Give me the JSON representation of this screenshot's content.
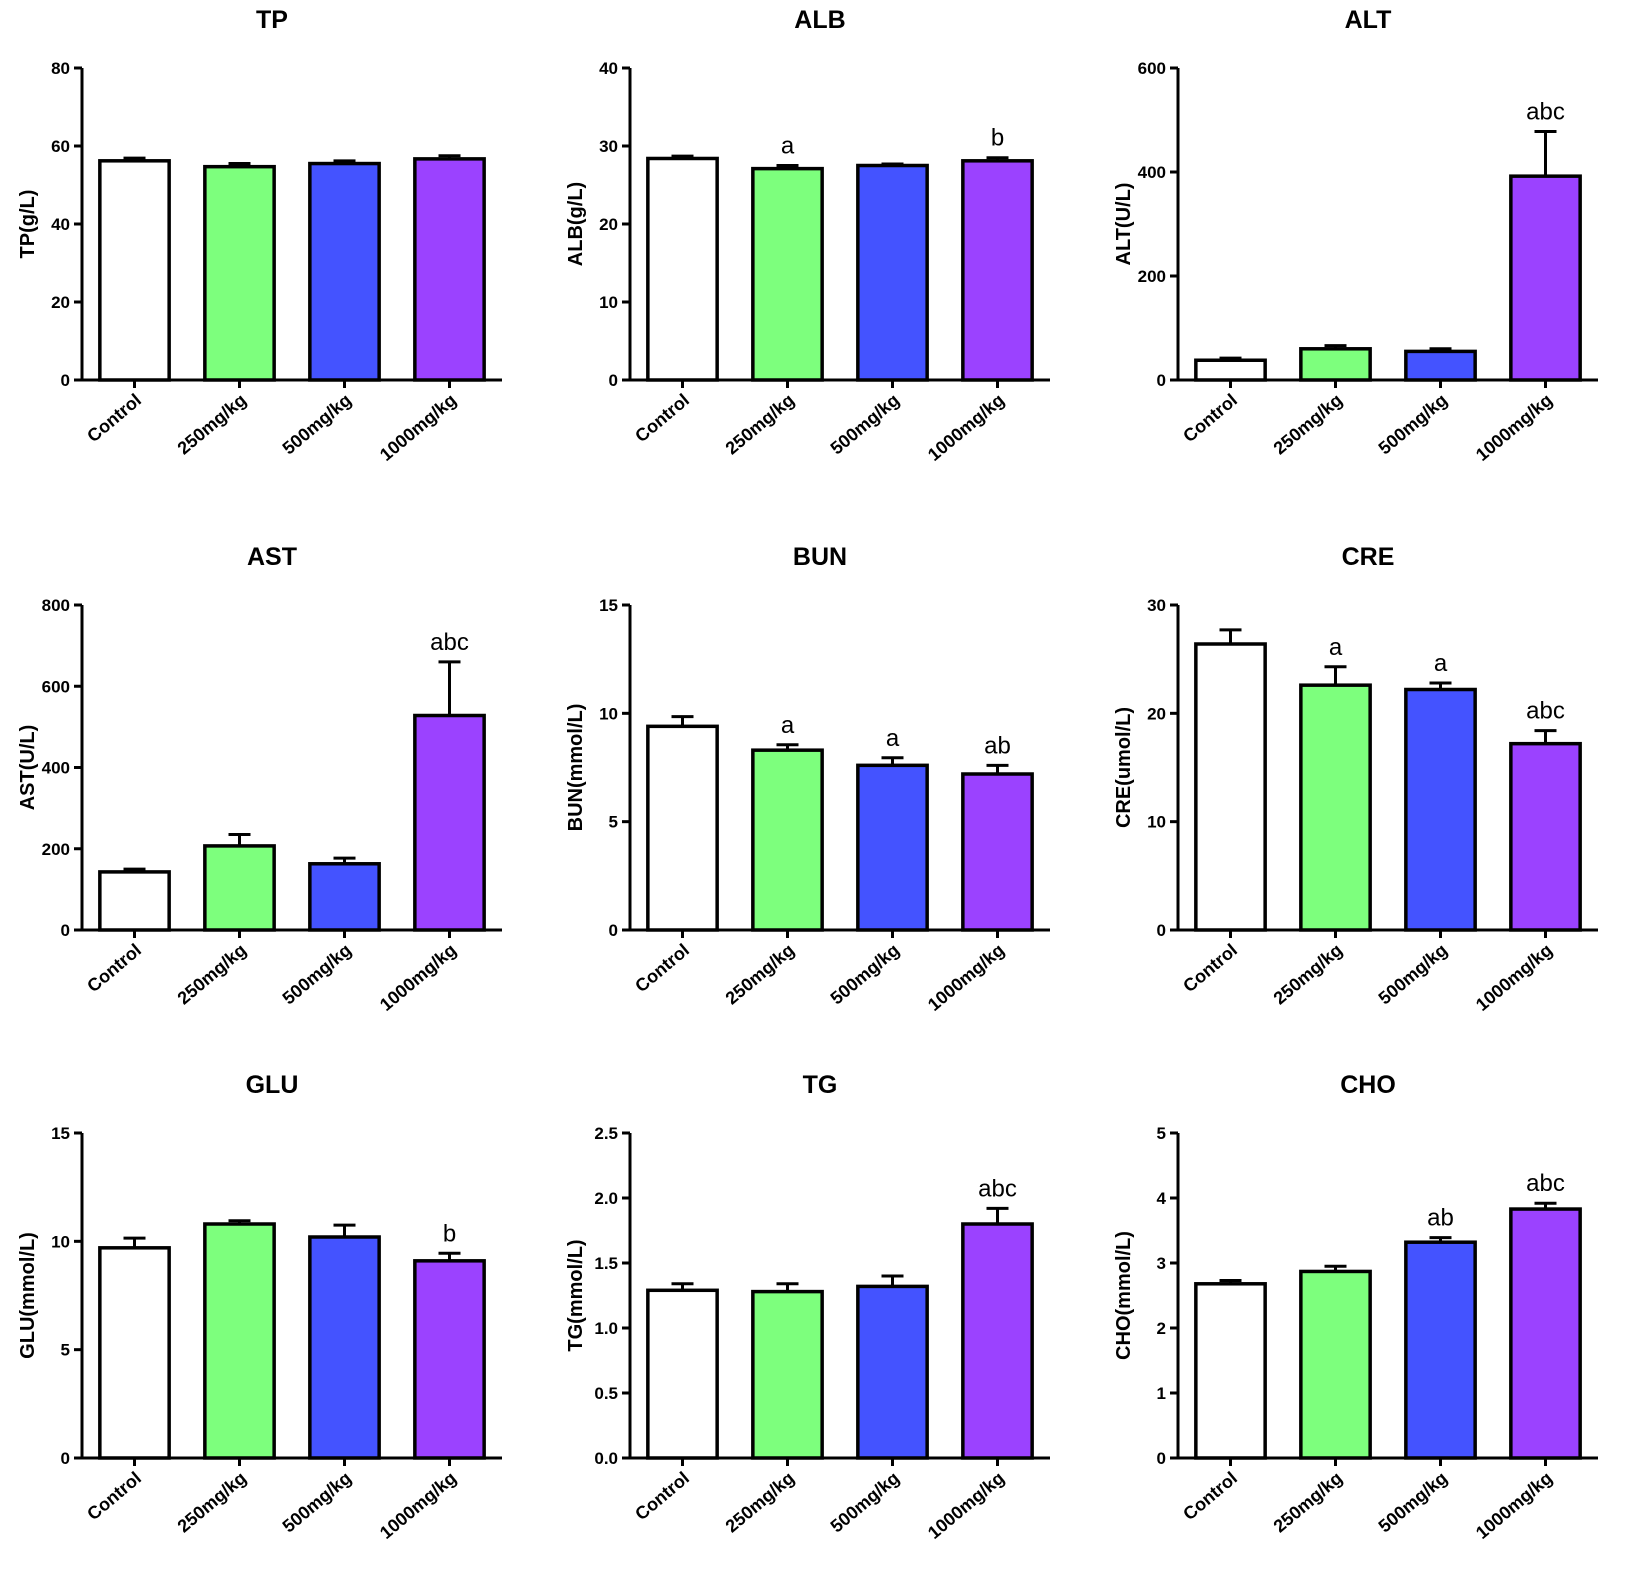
{
  "categories": [
    "Control",
    "250mg/kg",
    "500mg/kg",
    "1000mg/kg"
  ],
  "colors": [
    "#ffffff",
    "#7dff7d",
    "#4453ff",
    "#9b42ff"
  ],
  "chart_data": [
    {
      "type": "bar",
      "title": "TP",
      "ylabel": "TP(g/L)",
      "ylim": [
        0,
        80
      ],
      "yticks": [
        "0",
        "20",
        "40",
        "60",
        "80"
      ],
      "values": [
        56.2,
        54.7,
        55.5,
        56.7
      ],
      "errors": [
        0.7,
        0.8,
        0.7,
        0.8
      ],
      "annotations": [
        "",
        "",
        "",
        ""
      ]
    },
    {
      "type": "bar",
      "title": "ALB",
      "ylabel": "ALB(g/L)",
      "ylim": [
        0,
        40
      ],
      "yticks": [
        "0",
        "10",
        "20",
        "30",
        "40"
      ],
      "values": [
        28.4,
        27.1,
        27.5,
        28.1
      ],
      "errors": [
        0.3,
        0.4,
        0.2,
        0.4
      ],
      "annotations": [
        "",
        "a",
        "",
        "b"
      ]
    },
    {
      "type": "bar",
      "title": "ALT",
      "ylabel": "ALT(U/L)",
      "ylim": [
        0,
        600
      ],
      "yticks": [
        "0",
        "200",
        "400",
        "600"
      ],
      "values": [
        38,
        60,
        55,
        392
      ],
      "errors": [
        4,
        6,
        5,
        86
      ],
      "annotations": [
        "",
        "",
        "",
        "abc"
      ]
    },
    {
      "type": "bar",
      "title": "AST",
      "ylabel": "AST(U/L)",
      "ylim": [
        0,
        800
      ],
      "yticks": [
        "0",
        "200",
        "400",
        "600",
        "800"
      ],
      "values": [
        143,
        207,
        163,
        528
      ],
      "errors": [
        7,
        28,
        14,
        132
      ],
      "annotations": [
        "",
        "",
        "",
        "abc"
      ]
    },
    {
      "type": "bar",
      "title": "BUN",
      "ylabel": "BUN(mmol/L)",
      "ylim": [
        0,
        15
      ],
      "yticks": [
        "0",
        "5",
        "10",
        "15"
      ],
      "values": [
        9.4,
        8.3,
        7.6,
        7.2
      ],
      "errors": [
        0.45,
        0.25,
        0.35,
        0.4
      ],
      "annotations": [
        "",
        "a",
        "a",
        "ab"
      ]
    },
    {
      "type": "bar",
      "title": "CRE",
      "ylabel": "CRE(umol/L)",
      "ylim": [
        0,
        30
      ],
      "yticks": [
        "0",
        "10",
        "20",
        "30"
      ],
      "values": [
        26.4,
        22.6,
        22.2,
        17.2
      ],
      "errors": [
        1.3,
        1.7,
        0.6,
        1.2
      ],
      "annotations": [
        "",
        "a",
        "a",
        "abc"
      ]
    },
    {
      "type": "bar",
      "title": "GLU",
      "ylabel": "GLU(mmol/L)",
      "ylim": [
        0,
        15
      ],
      "yticks": [
        "0",
        "5",
        "10",
        "15"
      ],
      "values": [
        9.7,
        10.8,
        10.2,
        9.1
      ],
      "errors": [
        0.45,
        0.15,
        0.55,
        0.35
      ],
      "annotations": [
        "",
        "",
        "",
        "b"
      ]
    },
    {
      "type": "bar",
      "title": "TG",
      "ylabel": "TG(mmol/L)",
      "ylim": [
        0,
        2.5
      ],
      "yticks": [
        "0.0",
        "0.5",
        "1.0",
        "1.5",
        "2.0",
        "2.5"
      ],
      "values": [
        1.29,
        1.28,
        1.32,
        1.8
      ],
      "errors": [
        0.05,
        0.06,
        0.08,
        0.12
      ],
      "annotations": [
        "",
        "",
        "",
        "abc"
      ]
    },
    {
      "type": "bar",
      "title": "CHO",
      "ylabel": "CHO(mmol/L)",
      "ylim": [
        0,
        5
      ],
      "yticks": [
        "0",
        "1",
        "2",
        "3",
        "4",
        "5"
      ],
      "values": [
        2.68,
        2.87,
        3.32,
        3.83
      ],
      "errors": [
        0.05,
        0.08,
        0.07,
        0.09
      ],
      "annotations": [
        "",
        "",
        "ab",
        "abc"
      ]
    }
  ]
}
